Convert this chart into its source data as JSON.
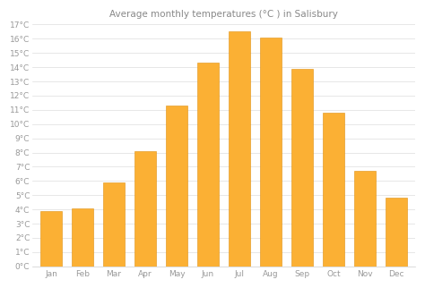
{
  "months": [
    "Jan",
    "Feb",
    "Mar",
    "Apr",
    "May",
    "Jun",
    "Jul",
    "Aug",
    "Sep",
    "Oct",
    "Nov",
    "Dec"
  ],
  "values": [
    3.9,
    4.1,
    5.9,
    8.1,
    11.3,
    14.3,
    16.5,
    16.1,
    13.9,
    10.8,
    6.7,
    4.8
  ],
  "bar_color": "#FBB034",
  "bar_edge_color": "#E09010",
  "background_color": "#FFFFFF",
  "plot_bg_color": "#FFFFFF",
  "grid_color": "#DDDDDD",
  "title": "Average monthly temperatures (°C ) in Salisbury",
  "title_fontsize": 7.5,
  "title_color": "#888888",
  "ylim": [
    0,
    17
  ],
  "yticks": [
    0,
    1,
    2,
    3,
    4,
    5,
    6,
    7,
    8,
    9,
    10,
    11,
    12,
    13,
    14,
    15,
    16,
    17
  ],
  "tick_color": "#999999",
  "tick_fontsize": 6.5,
  "axis_color": "#CCCCCC",
  "bar_width": 0.7
}
